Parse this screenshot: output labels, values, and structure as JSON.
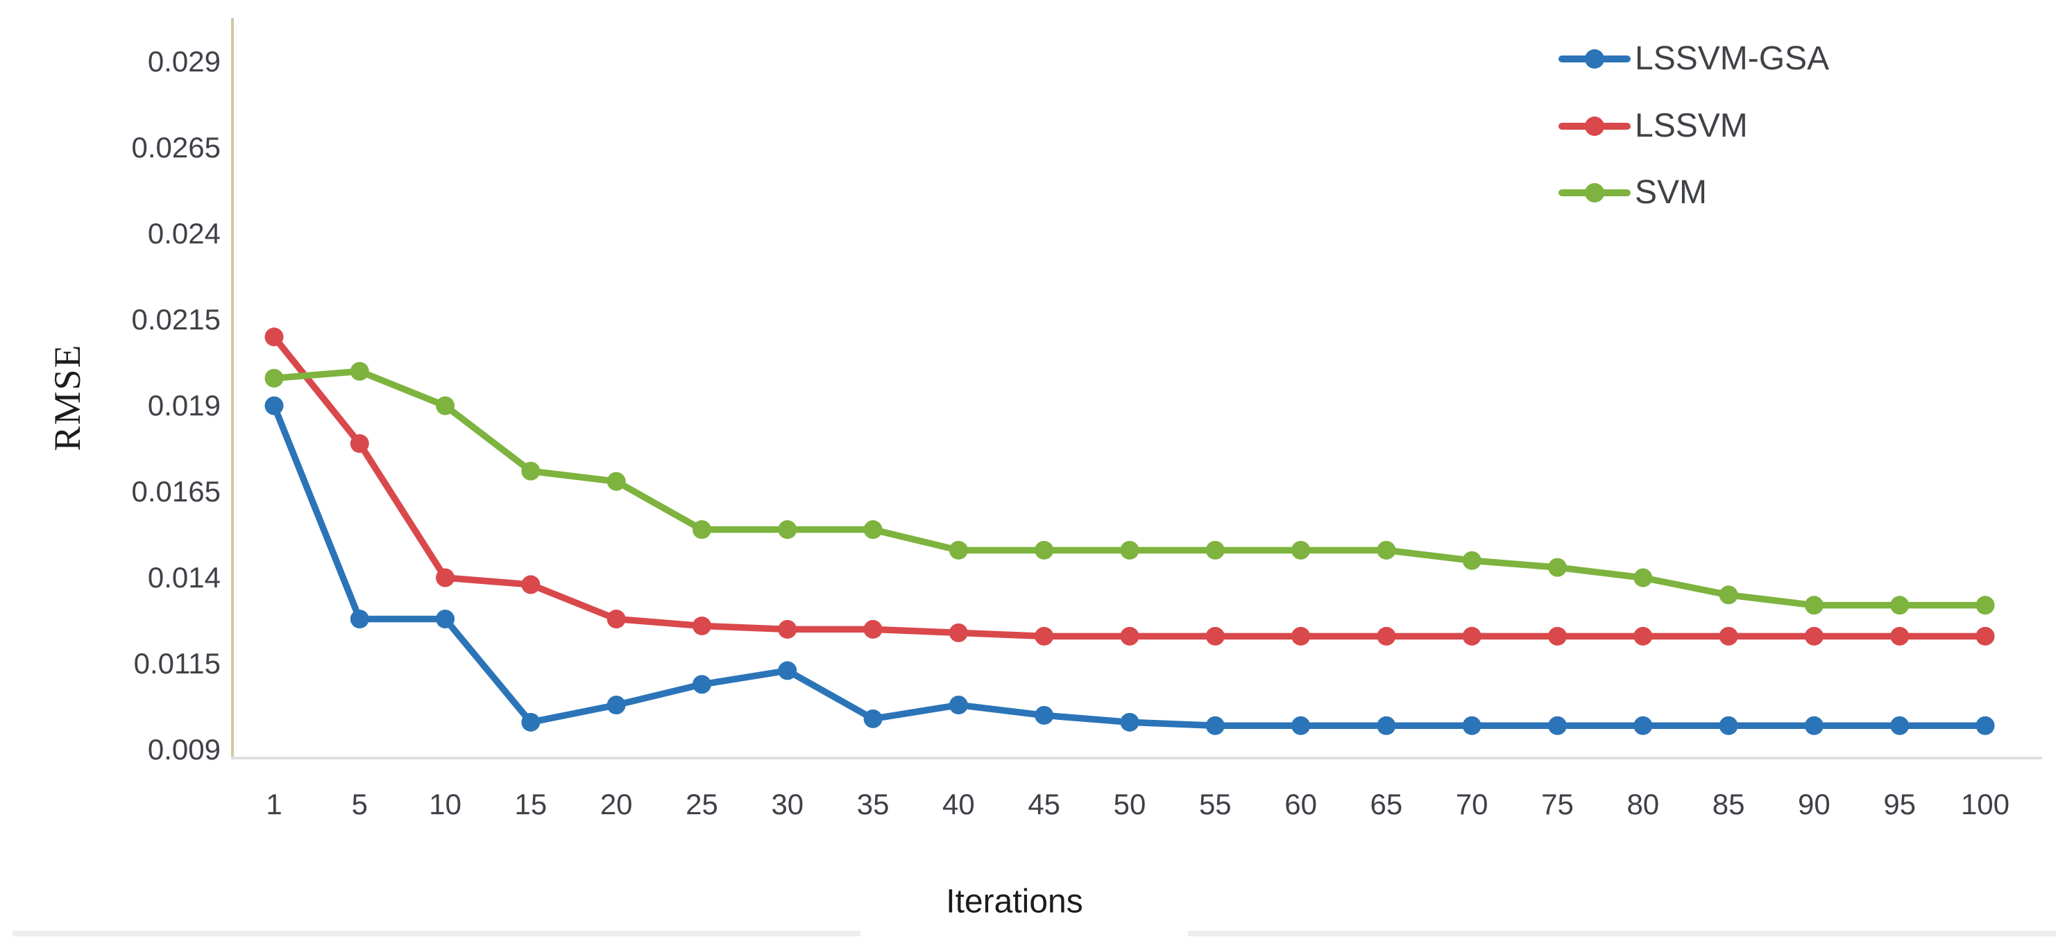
{
  "figure": {
    "xlabel": "Iterations",
    "ylabel": "RMSE"
  },
  "axes": {
    "x_tick_labels": [
      "1",
      "5",
      "10",
      "15",
      "20",
      "25",
      "30",
      "35",
      "40",
      "45",
      "50",
      "55",
      "60",
      "65",
      "70",
      "75",
      "80",
      "85",
      "90",
      "95",
      "100"
    ],
    "y_tick_labels": [
      "0.029",
      "0.0265",
      "0.024",
      "0.0215",
      "0.019",
      "0.0165",
      "0.014",
      "0.0115",
      "0.009"
    ]
  },
  "legend": {
    "entries": [
      {
        "label": "LSSVM-GSA",
        "color": "#2b74b8"
      },
      {
        "label": "LSSVM",
        "color": "#d9484b"
      },
      {
        "label": "SVM",
        "color": "#7db33e"
      }
    ]
  },
  "colors": {
    "y_axis_line": "#cfc8a2",
    "x_axis_line": "#e0e0e0",
    "tick_text": "#3e4147",
    "legend_text": "#3f4246",
    "bottom_strip": "#ededed",
    "background": "#ffffff"
  },
  "chart_data": {
    "type": "line",
    "title": "",
    "xlabel": "Iterations",
    "ylabel": "RMSE",
    "categories": [
      1,
      5,
      10,
      15,
      20,
      25,
      30,
      35,
      40,
      45,
      50,
      55,
      60,
      65,
      70,
      75,
      80,
      85,
      90,
      95,
      100
    ],
    "y_ticks": [
      0.029,
      0.0265,
      0.024,
      0.0215,
      0.019,
      0.0165,
      0.014,
      0.0115,
      0.009
    ],
    "ylim": [
      0.009,
      0.029
    ],
    "y_tick_step": 0.0025,
    "grid": "off",
    "legend_position": "top-right",
    "marker": "circle",
    "series": [
      {
        "name": "LSSVM-GSA",
        "color": "#2b74b8",
        "values": [
          0.019,
          0.0128,
          0.0128,
          0.0098,
          0.0103,
          0.0109,
          0.0113,
          0.0099,
          0.0103,
          0.01,
          0.0098,
          0.0097,
          0.0097,
          0.0097,
          0.0097,
          0.0097,
          0.0097,
          0.0097,
          0.0097,
          0.0097,
          0.0097
        ]
      },
      {
        "name": "LSSVM",
        "color": "#d9484b",
        "values": [
          0.021,
          0.0179,
          0.014,
          0.0138,
          0.0128,
          0.0126,
          0.0125,
          0.0125,
          0.0124,
          0.0123,
          0.0123,
          0.0123,
          0.0123,
          0.0123,
          0.0123,
          0.0123,
          0.0123,
          0.0123,
          0.0123,
          0.0123,
          0.0123
        ]
      },
      {
        "name": "SVM",
        "color": "#7db33e",
        "values": [
          0.0198,
          0.02,
          0.019,
          0.0171,
          0.0168,
          0.0154,
          0.0154,
          0.0154,
          0.0148,
          0.0148,
          0.0148,
          0.0148,
          0.0148,
          0.0148,
          0.0145,
          0.0143,
          0.014,
          0.0135,
          0.0132,
          0.0132,
          0.0132
        ]
      }
    ]
  }
}
